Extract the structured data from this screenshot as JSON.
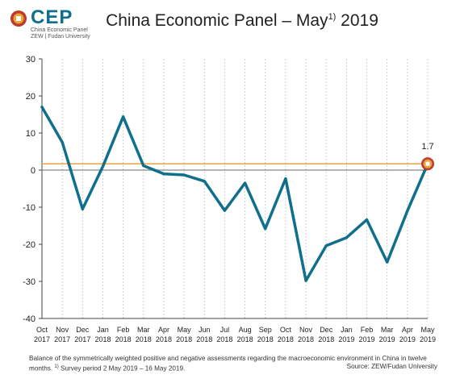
{
  "header": {
    "logo_text": "CEP",
    "logo_sub1": "China Economic Panel",
    "logo_sub2": "ZEW | Fudan University",
    "title_pre": "China Economic Panel – May",
    "title_sup": "1)",
    "title_post": " 2019"
  },
  "footer": {
    "note_main": "Balance of the symmetrically weighted positive and negative assessments regarding the macroeconomic environment in China in twelve months. ",
    "note_sup": "1)",
    "note_tail": " Survey period 2 May 2019 – 16 May 2019.",
    "source": "Source: ZEW/Fudan University"
  },
  "colors": {
    "series": "#0f6f8c",
    "reference_line": "#e8a33a",
    "marker": "#c0392b",
    "grid": "#b5b5b5",
    "zero_line": "#888888"
  },
  "chart_data": {
    "type": "line",
    "categories": [
      [
        "Oct",
        "2017"
      ],
      [
        "Nov",
        "2017"
      ],
      [
        "Dec",
        "2017"
      ],
      [
        "Jan",
        "2018"
      ],
      [
        "Feb",
        "2018"
      ],
      [
        "Mar",
        "2018"
      ],
      [
        "Apr",
        "2018"
      ],
      [
        "May",
        "2018"
      ],
      [
        "Jun",
        "2018"
      ],
      [
        "Jul",
        "2018"
      ],
      [
        "Aug",
        "2018"
      ],
      [
        "Sep",
        "2018"
      ],
      [
        "Oct",
        "2018"
      ],
      [
        "Nov",
        "2018"
      ],
      [
        "Dec",
        "2018"
      ],
      [
        "Jan",
        "2019"
      ],
      [
        "Feb",
        "2019"
      ],
      [
        "Mar",
        "2019"
      ],
      [
        "Apr",
        "2019"
      ],
      [
        "May",
        "2019"
      ]
    ],
    "series": [
      {
        "values": [
          17.0,
          7.5,
          -10.5,
          1.0,
          14.4,
          1.2,
          -1.0,
          -1.3,
          -3.0,
          -10.9,
          -3.5,
          -15.8,
          -2.3,
          -29.8,
          -20.4,
          -18.2,
          -13.4,
          -24.8,
          -11.0,
          1.7
        ]
      }
    ],
    "reference_value": 1.7,
    "highlight_label": "1.7",
    "ylim": [
      -40,
      30
    ],
    "yticks": [
      30,
      20,
      10,
      0,
      -10,
      -20,
      -30,
      -40
    ],
    "grid": "vertical dotted",
    "xlabel": "",
    "ylabel": ""
  }
}
